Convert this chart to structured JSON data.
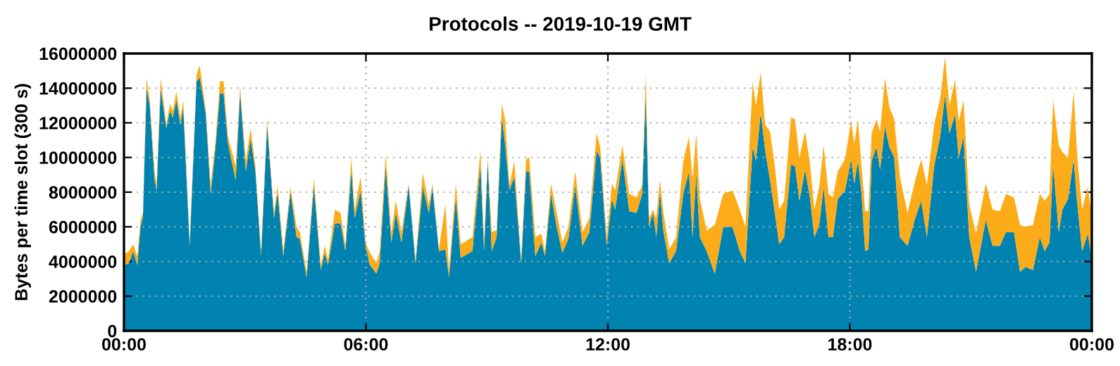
{
  "chart_data": {
    "type": "area",
    "title": "Protocols -- 2019-10-19 GMT",
    "ylabel": "Bytes per time slot (300 s)",
    "stacked": true,
    "grid": true,
    "legend": false,
    "x": [
      0,
      0.12,
      0.23,
      0.33,
      0.41,
      0.47,
      0.56,
      0.64,
      0.76,
      0.81,
      0.91,
      1.05,
      1.14,
      1.21,
      1.3,
      1.4,
      1.47,
      1.63,
      1.8,
      1.88,
      2.03,
      2.15,
      2.27,
      2.38,
      2.47,
      2.58,
      2.77,
      2.88,
      3.02,
      3.14,
      3.26,
      3.4,
      3.55,
      3.72,
      3.81,
      3.95,
      4.13,
      4.28,
      4.36,
      4.53,
      4.71,
      4.88,
      4.98,
      5.06,
      5.23,
      5.37,
      5.49,
      5.64,
      5.72,
      5.87,
      5.99,
      6.1,
      6.26,
      6.34,
      6.49,
      6.63,
      6.74,
      6.88,
      7.06,
      7.23,
      7.41,
      7.56,
      7.65,
      7.81,
      7.97,
      8.06,
      8.23,
      8.35,
      8.64,
      8.84,
      8.93,
      9.02,
      9.12,
      9.24,
      9.37,
      9.45,
      9.56,
      9.68,
      9.85,
      9.97,
      10.05,
      10.2,
      10.35,
      10.44,
      10.59,
      10.73,
      10.87,
      11.02,
      11.19,
      11.37,
      11.54,
      11.72,
      11.81,
      11.97,
      12.1,
      12.18,
      12.36,
      12.53,
      12.71,
      12.85,
      12.94,
      13.02,
      13.12,
      13.2,
      13.29,
      13.38,
      13.52,
      13.69,
      13.87,
      14.01,
      14.1,
      14.19,
      14.28,
      14.45,
      14.65,
      14.86,
      15.09,
      15.27,
      15.41,
      15.59,
      15.67,
      15.79,
      15.9,
      16.02,
      16.14,
      16.25,
      16.37,
      16.54,
      16.64,
      16.75,
      16.89,
      17.01,
      17.12,
      17.24,
      17.35,
      17.47,
      17.58,
      17.7,
      17.88,
      18.03,
      18.11,
      18.2,
      18.29,
      18.38,
      18.46,
      18.54,
      18.66,
      18.75,
      18.87,
      18.98,
      19.1,
      19.24,
      19.43,
      19.62,
      19.77,
      19.91,
      20.09,
      20.24,
      20.36,
      20.47,
      20.61,
      20.7,
      20.82,
      20.96,
      21.13,
      21.37,
      21.54,
      21.72,
      21.87,
      22.07,
      22.22,
      22.36,
      22.54,
      22.71,
      22.83,
      22.95,
      23.04,
      23.18,
      23.27,
      23.41,
      23.55,
      23.64,
      23.76,
      23.9,
      23.99,
      24
    ],
    "series": [
      {
        "color": "#0083b1",
        "values": [
          3800000.0,
          3900000.0,
          4600000.0,
          3800000.0,
          6000000.0,
          6600000.0,
          14000000.0,
          13000000.0,
          8700000.0,
          8100000.0,
          14000000.0,
          11700000.0,
          12700000.0,
          12300000.0,
          13300000.0,
          11900000.0,
          12900000.0,
          4900000.0,
          14400000.0,
          14600000.0,
          12500000.0,
          7900000.0,
          10600000.0,
          13700000.0,
          13700000.0,
          10800000.0,
          8700000.0,
          13800000.0,
          9200000.0,
          11100000.0,
          9200000.0,
          4300000.0,
          11900000.0,
          6500000.0,
          8000000.0,
          4300000.0,
          8000000.0,
          5400000.0,
          5300000.0,
          3100000.0,
          8400000.0,
          3500000.0,
          4500000.0,
          3800000.0,
          6200000.0,
          6200000.0,
          4600000.0,
          9300000.0,
          6500000.0,
          8100000.0,
          4900000.0,
          3800000.0,
          3300000.0,
          3900000.0,
          9500000.0,
          5100000.0,
          6800000.0,
          5100000.0,
          8400000.0,
          3900000.0,
          8300000.0,
          6800000.0,
          8300000.0,
          4600000.0,
          4700000.0,
          3100000.0,
          7700000.0,
          4200000.0,
          4600000.0,
          9600000.0,
          4600000.0,
          9800000.0,
          4600000.0,
          5400000.0,
          12300000.0,
          10800000.0,
          8100000.0,
          8900000.0,
          3900000.0,
          9200000.0,
          9200000.0,
          4300000.0,
          5100000.0,
          4300000.0,
          7900000.0,
          6000000.0,
          4500000.0,
          5300000.0,
          8400000.0,
          4900000.0,
          5700000.0,
          10400000.0,
          10000000.0,
          4900000.0,
          7600000.0,
          7000000.0,
          9900000.0,
          6900000.0,
          6800000.0,
          7900000.0,
          13700000.0,
          6000000.0,
          6800000.0,
          5400000.0,
          8000000.0,
          5700000.0,
          3900000.0,
          4600000.0,
          7900000.0,
          9200000.0,
          5400000.0,
          9100000.0,
          5400000.0,
          4600000.0,
          3300000.0,
          6000000.0,
          6000000.0,
          4600000.0,
          3900000.0,
          10600000.0,
          9800000.0,
          12600000.0,
          10400000.0,
          8700000.0,
          6800000.0,
          5000000.0,
          5400000.0,
          9600000.0,
          9500000.0,
          7500000.0,
          9300000.0,
          7700000.0,
          5400000.0,
          6100000.0,
          8300000.0,
          5400000.0,
          5400000.0,
          7600000.0,
          8100000.0,
          9900000.0,
          8500000.0,
          9800000.0,
          7900000.0,
          4600000.0,
          4700000.0,
          9800000.0,
          10600000.0,
          9300000.0,
          11800000.0,
          10600000.0,
          10000000.0,
          5400000.0,
          4900000.0,
          6500000.0,
          7500000.0,
          5400000.0,
          9500000.0,
          11200000.0,
          13600000.0,
          11400000.0,
          12500000.0,
          10000000.0,
          11200000.0,
          5400000.0,
          3400000.0,
          6400000.0,
          4900000.0,
          4900000.0,
          5700000.0,
          5700000.0,
          3400000.0,
          3700000.0,
          3500000.0,
          5400000.0,
          4600000.0,
          5100000.0,
          9600000.0,
          5700000.0,
          7000000.0,
          7600000.0,
          9900000.0,
          7300000.0,
          4600000.0,
          5600000.0,
          4300000.0,
          2000000.0
        ]
      },
      {
        "color": "#fcac19",
        "values": [
          600000.0,
          700000.0,
          400000.0,
          500000.0,
          400000.0,
          200000.0,
          600000.0,
          300000.0,
          500000.0,
          300000.0,
          600000.0,
          200000.0,
          400000.0,
          400000.0,
          500000.0,
          400000.0,
          400000.0,
          200000.0,
          400000.0,
          700000.0,
          200000.0,
          500000.0,
          400000.0,
          700000.0,
          700000.0,
          400000.0,
          800000.0,
          300000.0,
          600000.0,
          600000.0,
          300000.0,
          300000.0,
          300000.0,
          300000.0,
          400000.0,
          300000.0,
          300000.0,
          600000.0,
          400000.0,
          300000.0,
          400000.0,
          300000.0,
          400000.0,
          300000.0,
          800000.0,
          600000.0,
          300000.0,
          700000.0,
          500000.0,
          800000.0,
          200000.0,
          700000.0,
          600000.0,
          700000.0,
          700000.0,
          600000.0,
          700000.0,
          600000.0,
          100000.0,
          200000.0,
          800000.0,
          500000.0,
          200000.0,
          100000.0,
          2600000.0,
          400000.0,
          800000.0,
          800000.0,
          800000.0,
          800000.0,
          500000.0,
          200000.0,
          1100000.0,
          400000.0,
          800000.0,
          1400000.0,
          300000.0,
          900000.0,
          200000.0,
          700000.0,
          800000.0,
          1100000.0,
          500000.0,
          300000.0,
          600000.0,
          800000.0,
          600000.0,
          700000.0,
          800000.0,
          800000.0,
          800000.0,
          1000000.0,
          600000.0,
          500000.0,
          900000.0,
          1100000.0,
          800000.0,
          1000000.0,
          900000.0,
          500000.0,
          1100000.0,
          500000.0,
          200000.0,
          1100000.0,
          700000.0,
          1100000.0,
          800000.0,
          800000.0,
          1900000.0,
          2000000.0,
          3300000.0,
          2300000.0,
          2200000.0,
          1200000.0,
          2800000.0,
          1900000.0,
          2100000.0,
          2400000.0,
          2100000.0,
          3800000.0,
          3200000.0,
          2300000.0,
          1500000.0,
          2800000.0,
          2700000.0,
          2000000.0,
          2100000.0,
          2700000.0,
          2700000.0,
          2500000.0,
          2200000.0,
          2000000.0,
          1600000.0,
          2200000.0,
          2400000.0,
          2500000.0,
          2300000.0,
          1600000.0,
          1800000.0,
          2200000.0,
          2300000.0,
          2400000.0,
          1600000.0,
          2300000.0,
          2200000.0,
          1600000.0,
          1600000.0,
          2200000.0,
          2800000.0,
          2300000.0,
          2200000.0,
          3500000.0,
          1900000.0,
          2200000.0,
          2400000.0,
          3000000.0,
          2400000.0,
          2200000.0,
          2200000.0,
          1600000.0,
          2000000.0,
          2100000.0,
          2100000.0,
          1900000.0,
          2200000.0,
          2100000.0,
          2100000.0,
          2000000.0,
          2200000.0,
          2000000.0,
          2700000.0,
          2300000.0,
          2600000.0,
          2500000.0,
          2900000.0,
          2800000.0,
          3700000.0,
          5000000.0,
          3300000.0,
          2400000.0,
          3900000.0,
          2700000.0,
          2400000.0,
          2700000.0,
          2500000.0,
          1000000.0
        ]
      }
    ],
    "xlim": [
      0,
      24
    ],
    "xticks": [
      {
        "value": 0,
        "label": "00:00"
      },
      {
        "value": 6,
        "label": "06:00"
      },
      {
        "value": 12,
        "label": "12:00"
      },
      {
        "value": 18,
        "label": "18:00"
      },
      {
        "value": 24,
        "label": "00:00"
      }
    ],
    "ylim": [
      0,
      16000000
    ],
    "yticks": [
      0,
      2000000,
      4000000,
      6000000,
      8000000,
      10000000,
      12000000,
      14000000,
      16000000
    ]
  }
}
